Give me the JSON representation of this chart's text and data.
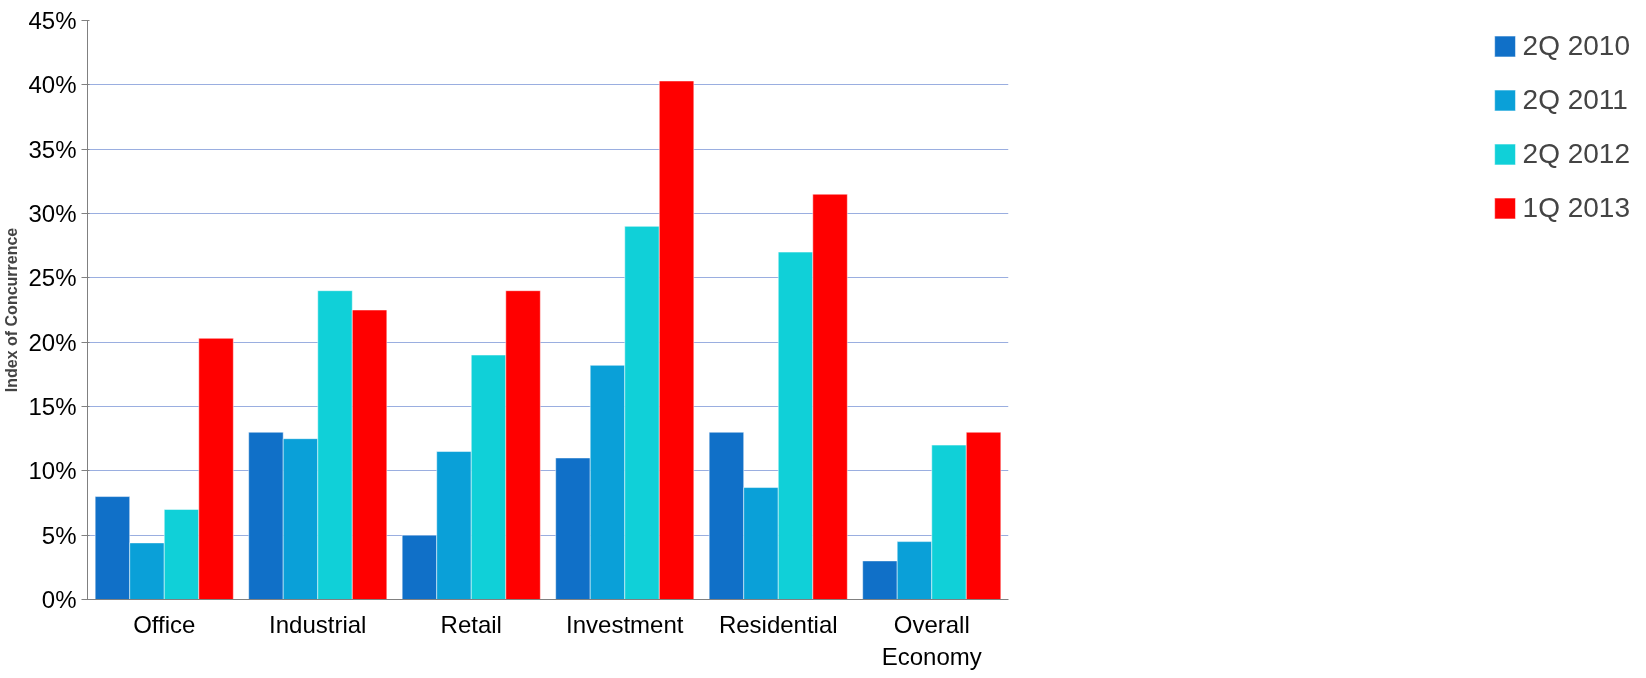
{
  "chart_data": {
    "type": "bar",
    "ylabel": "Index of Concurrence",
    "categories": [
      "Office",
      "Industrial",
      "Retail",
      "Investment",
      "Residential",
      "Overall Economy"
    ],
    "series": [
      {
        "name": "2Q 2010",
        "color": "#1070c8",
        "values": [
          8,
          13,
          5,
          11,
          13,
          3
        ]
      },
      {
        "name": "2Q 2011",
        "color": "#0aa0d8",
        "values": [
          4.4,
          12.5,
          11.5,
          18.2,
          8.7,
          4.5
        ]
      },
      {
        "name": "2Q 2012",
        "color": "#10d0d8",
        "values": [
          7,
          24,
          19,
          29,
          27,
          12
        ]
      },
      {
        "name": "1Q 2013",
        "color": "#ff0000",
        "values": [
          20.3,
          22.5,
          24,
          40.3,
          31.5,
          13
        ]
      }
    ],
    "ylim": [
      0,
      45
    ],
    "yticks": [
      {
        "value": 0,
        "label": "0%"
      },
      {
        "value": 5,
        "label": "5%"
      },
      {
        "value": 10,
        "label": "10%"
      },
      {
        "value": 15,
        "label": "15%"
      },
      {
        "value": 20,
        "label": "20%"
      },
      {
        "value": 25,
        "label": "25%"
      },
      {
        "value": 30,
        "label": "30%"
      },
      {
        "value": 35,
        "label": "35%"
      },
      {
        "value": 40,
        "label": "40%"
      },
      {
        "value": 45,
        "label": "45%"
      }
    ],
    "grid": "y",
    "legend": "right"
  }
}
